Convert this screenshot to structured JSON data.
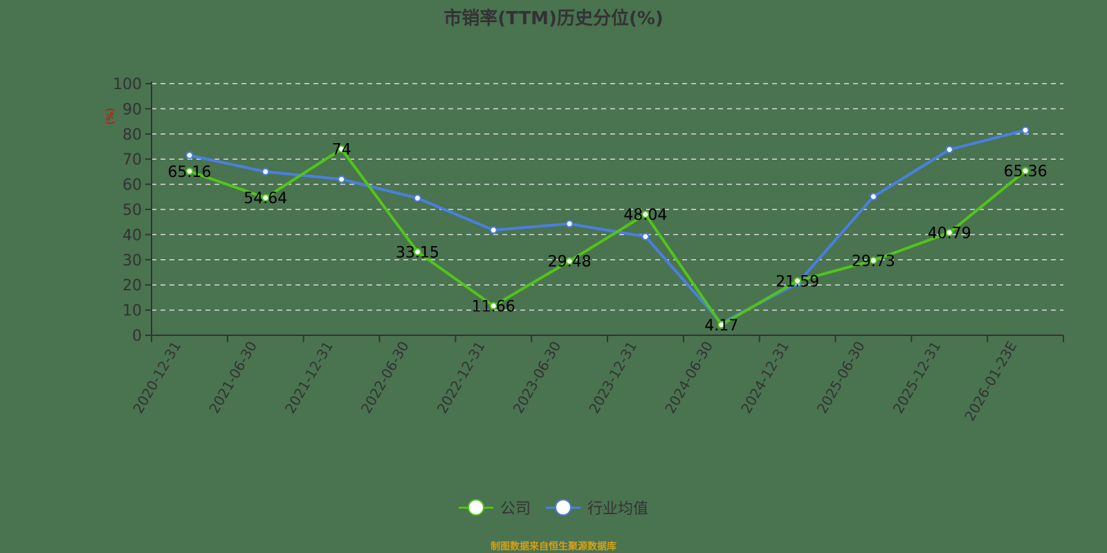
{
  "title": "市销率(TTM)历史分位(%)",
  "y_axis_unit": "(%)",
  "legend": [
    {
      "label": "公司",
      "color": "#52c41a"
    },
    {
      "label": "行业均值",
      "color": "#4a7fe0"
    }
  ],
  "source": "制图数据来自恒生聚源数据库",
  "chart_data": {
    "type": "line",
    "title": "市销率(TTM)历史分位(%)",
    "xlabel": "",
    "ylabel": "(%)",
    "ylim": [
      0,
      100
    ],
    "yticks": [
      0,
      10,
      20,
      30,
      40,
      50,
      60,
      70,
      80,
      90,
      100
    ],
    "grid": true,
    "legend_position": "bottom",
    "categories": [
      "2020-12-31",
      "2021-06-30",
      "2021-12-31",
      "2022-06-30",
      "2022-12-31",
      "2023-06-30",
      "2023-12-31",
      "2024-06-30",
      "2024-12-31",
      "2025-06-30",
      "2025-12-31",
      "2026-01-23E"
    ],
    "series": [
      {
        "name": "公司",
        "color": "#52c41a",
        "labeled": true,
        "values": [
          65.16,
          54.64,
          74,
          33.15,
          11.66,
          29.48,
          48.04,
          4.17,
          21.59,
          29.73,
          40.79,
          65.36
        ]
      },
      {
        "name": "行业均值",
        "color": "#4a7fe0",
        "labeled": false,
        "values": [
          71.5,
          65.0,
          62.0,
          54.5,
          41.8,
          44.3,
          39.2,
          4.8,
          20.6,
          55.1,
          73.8,
          81.5
        ]
      }
    ]
  }
}
